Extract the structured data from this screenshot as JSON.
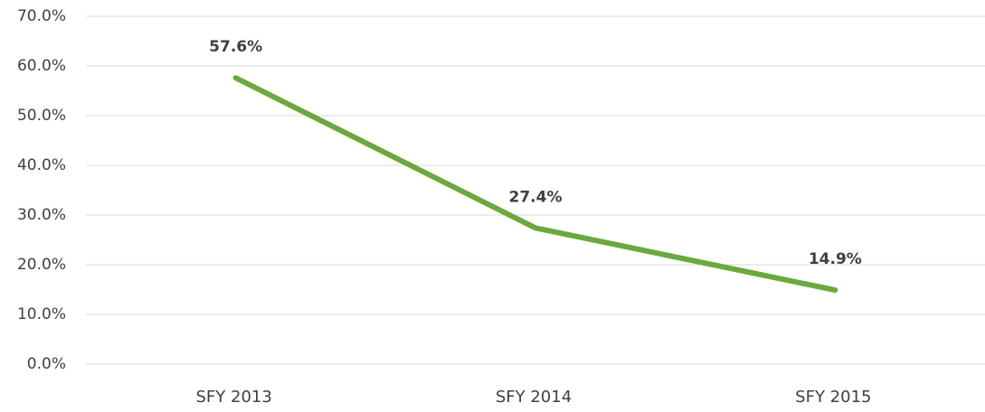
{
  "chart_data": {
    "type": "line",
    "categories": [
      "SFY 2013",
      "SFY 2014",
      "SFY 2015"
    ],
    "series": [
      {
        "color": "#6aa93f",
        "values": [
          57.6,
          27.4,
          14.9
        ],
        "value_labels": [
          "57.6%",
          "27.4%",
          "14.9%"
        ]
      }
    ],
    "ylim": [
      0,
      70
    ],
    "yticks": [
      {
        "value": 0,
        "label": "0.0%"
      },
      {
        "value": 10,
        "label": "10.0%"
      },
      {
        "value": 20,
        "label": "20.0%"
      },
      {
        "value": 30,
        "label": "30.0%"
      },
      {
        "value": 40,
        "label": "40.0%"
      },
      {
        "value": 50,
        "label": "50.0%"
      },
      {
        "value": 60,
        "label": "60.0%"
      },
      {
        "value": 70,
        "label": "70.0%"
      }
    ],
    "grid": true
  }
}
